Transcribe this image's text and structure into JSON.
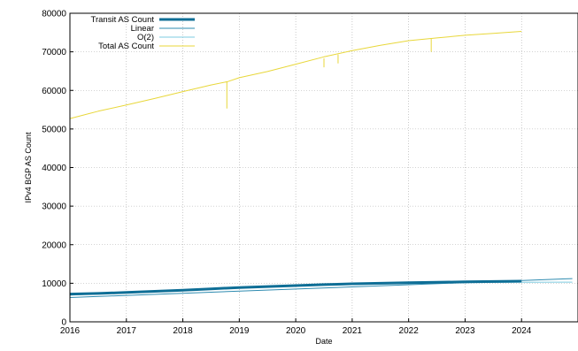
{
  "chart_data": {
    "type": "line",
    "title": "",
    "xlabel": "Date",
    "ylabel": "IPv4 BGP AS Count",
    "xlim": [
      2016,
      2025
    ],
    "ylim": [
      0,
      80000
    ],
    "x_ticks": [
      "2016",
      "2017",
      "2018",
      "2019",
      "2020",
      "2021",
      "2022",
      "2023",
      "2024"
    ],
    "y_ticks": [
      "0",
      "10000",
      "20000",
      "30000",
      "40000",
      "50000",
      "60000",
      "70000",
      "80000"
    ],
    "grid": true,
    "legend_position": "top-left",
    "series": [
      {
        "name": "Transit AS Count",
        "color": "#0e6e96",
        "style": "thick",
        "x": [
          2016.0,
          2016.5,
          2017.0,
          2017.5,
          2018.0,
          2018.5,
          2019.0,
          2019.5,
          2020.0,
          2020.5,
          2021.0,
          2021.5,
          2022.0,
          2022.5,
          2023.0,
          2023.5,
          2024.0
        ],
        "y": [
          7200,
          7350,
          7600,
          7900,
          8200,
          8550,
          8900,
          9150,
          9400,
          9650,
          9850,
          10000,
          10150,
          10250,
          10350,
          10450,
          10550
        ]
      },
      {
        "name": "Linear",
        "color": "#2e8bb0",
        "style": "thin",
        "x": [
          2016.0,
          2024.9
        ],
        "y": [
          6300,
          11200
        ]
      },
      {
        "name": "O(2)",
        "color": "#7ecbe0",
        "style": "thin",
        "x": [
          2016.0,
          2017.0,
          2018.0,
          2019.0,
          2020.0,
          2021.0,
          2022.0,
          2023.0,
          2024.0,
          2024.9
        ],
        "y": [
          6900,
          7650,
          8300,
          8850,
          9300,
          9650,
          9950,
          10150,
          10250,
          10300
        ]
      },
      {
        "name": "Total AS Count",
        "color": "#e8d73a",
        "style": "thin",
        "x": [
          2016.0,
          2016.5,
          2017.0,
          2017.5,
          2018.0,
          2018.5,
          2018.8,
          2019.0,
          2019.5,
          2020.0,
          2020.5,
          2021.0,
          2021.5,
          2022.0,
          2022.5,
          2023.0,
          2023.5,
          2024.0
        ],
        "y": [
          52700,
          54600,
          56200,
          57900,
          59700,
          61400,
          62300,
          63300,
          64900,
          66800,
          68700,
          70300,
          71700,
          72900,
          73600,
          74300,
          74800,
          75300
        ]
      }
    ],
    "annotations": [
      {
        "series": "Total AS Count",
        "type": "dip",
        "x": 2018.78,
        "from": 62200,
        "to": 55300
      },
      {
        "series": "Total AS Count",
        "type": "dip",
        "x": 2020.5,
        "from": 68300,
        "to": 66000
      },
      {
        "series": "Total AS Count",
        "type": "dip",
        "x": 2020.75,
        "from": 69300,
        "to": 67000
      },
      {
        "series": "Total AS Count",
        "type": "dip",
        "x": 2022.4,
        "from": 73400,
        "to": 70000
      }
    ]
  }
}
